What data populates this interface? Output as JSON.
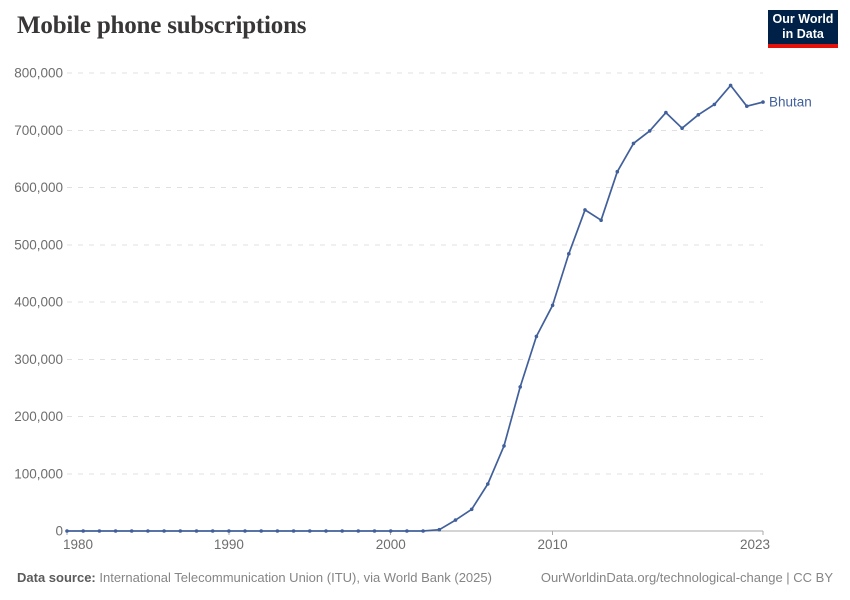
{
  "header": {
    "title": "Mobile phone subscriptions"
  },
  "logo": {
    "line1": "Our World",
    "line2": "in Data",
    "bg_color": "#002147",
    "accent_color": "#e3120b"
  },
  "chart_data": {
    "type": "line",
    "title": "Mobile phone subscriptions",
    "entity": "Bhutan",
    "xlabel": "",
    "ylabel": "",
    "xlim": [
      1980,
      2023
    ],
    "ylim": [
      0,
      800000
    ],
    "grid": "horizontal-dashed",
    "legend": "line-end-label",
    "x": [
      1980,
      1981,
      1982,
      1983,
      1984,
      1985,
      1986,
      1987,
      1988,
      1989,
      1990,
      1991,
      1992,
      1993,
      1994,
      1995,
      1996,
      1997,
      1998,
      1999,
      2000,
      2001,
      2002,
      2003,
      2004,
      2005,
      2006,
      2007,
      2008,
      2009,
      2010,
      2011,
      2012,
      2013,
      2014,
      2015,
      2016,
      2017,
      2018,
      2019,
      2020,
      2021,
      2022,
      2023
    ],
    "series": [
      {
        "name": "Bhutan",
        "color": "#41609b",
        "values": [
          0,
          0,
          0,
          0,
          0,
          0,
          0,
          0,
          0,
          0,
          0,
          0,
          0,
          0,
          0,
          0,
          0,
          0,
          0,
          0,
          0,
          0,
          0,
          2288,
          18995,
          37842,
          82078,
          148689,
          251790,
          339831,
          394316,
          484189,
          560890,
          542952,
          627562,
          677059,
          698897,
          730776,
          703562,
          727000,
          745137,
          778426,
          741941,
          749246
        ]
      }
    ],
    "yticks": [
      {
        "value": 0,
        "label": "0"
      },
      {
        "value": 100000,
        "label": "100,000"
      },
      {
        "value": 200000,
        "label": "200,000"
      },
      {
        "value": 300000,
        "label": "300,000"
      },
      {
        "value": 400000,
        "label": "400,000"
      },
      {
        "value": 500000,
        "label": "500,000"
      },
      {
        "value": 600000,
        "label": "600,000"
      },
      {
        "value": 700000,
        "label": "700,000"
      },
      {
        "value": 800000,
        "label": "800,000"
      }
    ],
    "xticks": [
      {
        "value": 1980,
        "label": "1980"
      },
      {
        "value": 1990,
        "label": "1990"
      },
      {
        "value": 2000,
        "label": "2000"
      },
      {
        "value": 2010,
        "label": "2010"
      },
      {
        "value": 2023,
        "label": "2023"
      }
    ],
    "colors": {
      "axis_text": "#6e6e6e",
      "gridline": "#e0e0e0",
      "axis_line": "#a9a9a9"
    }
  },
  "footer": {
    "source_label": "Data source:",
    "source_text": " International Telecommunication Union (ITU), via World Bank (2025)",
    "link_text": "OurWorldinData.org/technological-change | CC BY"
  }
}
